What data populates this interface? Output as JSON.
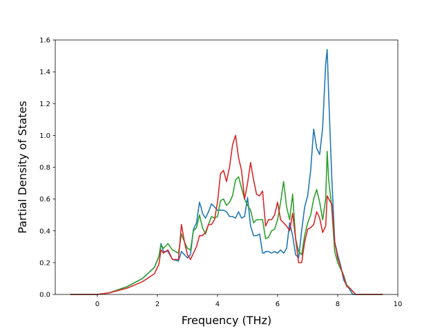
{
  "chart_data": {
    "type": "line",
    "title": "",
    "xlabel": "Frequency (THz)",
    "ylabel": "Partial Density of States",
    "xlim": [
      -1.4,
      10.0
    ],
    "ylim": [
      0.0,
      1.6
    ],
    "xticks": [
      0,
      2,
      4,
      6,
      8,
      10
    ],
    "yticks": [
      0.0,
      0.2,
      0.4,
      0.6,
      0.8,
      1.0,
      1.2,
      1.4,
      1.6
    ],
    "grid": false,
    "legend": "none",
    "series": [
      {
        "color": "#1f77b4",
        "x": [
          -0.9,
          0.0,
          0.4,
          1.0,
          1.5,
          1.9,
          2.05,
          2.12,
          2.2,
          2.35,
          2.5,
          2.7,
          2.8,
          2.9,
          3.0,
          3.1,
          3.2,
          3.3,
          3.4,
          3.45,
          3.5,
          3.6,
          3.7,
          3.8,
          3.9,
          4.0,
          4.1,
          4.2,
          4.3,
          4.4,
          4.5,
          4.6,
          4.7,
          4.8,
          4.9,
          5.0,
          5.1,
          5.2,
          5.3,
          5.4,
          5.5,
          5.55,
          5.6,
          5.7,
          5.8,
          5.9,
          6.0,
          6.1,
          6.2,
          6.3,
          6.4,
          6.5,
          6.6,
          6.7,
          6.8,
          6.9,
          7.0,
          7.1,
          7.2,
          7.3,
          7.4,
          7.5,
          7.6,
          7.65,
          7.7,
          7.8,
          7.9,
          8.0,
          8.1,
          8.2,
          8.3,
          8.4,
          8.5,
          8.6,
          8.7,
          9.5
        ],
        "y": [
          0.0,
          0.0,
          0.01,
          0.05,
          0.1,
          0.17,
          0.24,
          0.32,
          0.27,
          0.27,
          0.22,
          0.21,
          0.27,
          0.25,
          0.23,
          0.25,
          0.41,
          0.45,
          0.58,
          0.55,
          0.51,
          0.48,
          0.52,
          0.57,
          0.55,
          0.53,
          0.53,
          0.53,
          0.52,
          0.49,
          0.49,
          0.48,
          0.52,
          0.48,
          0.49,
          0.61,
          0.43,
          0.37,
          0.37,
          0.38,
          0.26,
          0.26,
          0.27,
          0.27,
          0.26,
          0.27,
          0.26,
          0.28,
          0.26,
          0.29,
          0.45,
          0.37,
          0.25,
          0.23,
          0.4,
          0.55,
          0.62,
          0.78,
          1.04,
          0.92,
          0.88,
          1.05,
          1.45,
          1.54,
          1.25,
          0.75,
          0.33,
          0.25,
          0.18,
          0.09,
          0.06,
          0.03,
          0.0,
          0.0,
          0.0,
          0.0
        ]
      },
      {
        "color": "#2ca02c",
        "x": [
          -0.9,
          0.0,
          0.4,
          1.0,
          1.5,
          1.9,
          2.05,
          2.12,
          2.2,
          2.35,
          2.5,
          2.7,
          2.8,
          2.9,
          3.0,
          3.1,
          3.2,
          3.3,
          3.4,
          3.5,
          3.6,
          3.7,
          3.8,
          3.9,
          4.0,
          4.1,
          4.2,
          4.3,
          4.4,
          4.5,
          4.6,
          4.7,
          4.8,
          4.9,
          5.0,
          5.1,
          5.2,
          5.3,
          5.4,
          5.5,
          5.6,
          5.7,
          5.8,
          5.9,
          6.0,
          6.1,
          6.2,
          6.3,
          6.4,
          6.5,
          6.6,
          6.7,
          6.8,
          6.9,
          7.0,
          7.1,
          7.2,
          7.3,
          7.4,
          7.5,
          7.6,
          7.65,
          7.7,
          7.8,
          7.9,
          8.0,
          8.1,
          8.2,
          8.3,
          8.4,
          8.5,
          8.6,
          8.7,
          9.5
        ],
        "y": [
          0.0,
          0.0,
          0.01,
          0.05,
          0.1,
          0.17,
          0.24,
          0.31,
          0.29,
          0.32,
          0.28,
          0.26,
          0.38,
          0.33,
          0.29,
          0.28,
          0.4,
          0.42,
          0.5,
          0.42,
          0.38,
          0.44,
          0.49,
          0.48,
          0.49,
          0.59,
          0.6,
          0.56,
          0.58,
          0.62,
          0.72,
          0.74,
          0.67,
          0.6,
          0.56,
          0.53,
          0.45,
          0.47,
          0.47,
          0.47,
          0.35,
          0.36,
          0.4,
          0.41,
          0.47,
          0.58,
          0.71,
          0.55,
          0.47,
          0.63,
          0.35,
          0.27,
          0.25,
          0.37,
          0.45,
          0.5,
          0.6,
          0.66,
          0.58,
          0.47,
          0.6,
          0.9,
          0.72,
          0.55,
          0.27,
          0.2,
          0.16,
          0.12,
          0.06,
          0.04,
          0.02,
          0.0,
          0.0,
          0.0
        ]
      },
      {
        "color": "#d62728",
        "x": [
          -0.9,
          0.0,
          0.4,
          1.0,
          1.5,
          1.9,
          2.05,
          2.12,
          2.2,
          2.35,
          2.5,
          2.7,
          2.8,
          2.9,
          3.0,
          3.1,
          3.2,
          3.3,
          3.4,
          3.5,
          3.6,
          3.7,
          3.8,
          3.9,
          4.0,
          4.1,
          4.2,
          4.3,
          4.4,
          4.5,
          4.6,
          4.7,
          4.8,
          4.9,
          5.0,
          5.1,
          5.2,
          5.3,
          5.4,
          5.5,
          5.6,
          5.7,
          5.8,
          5.9,
          6.0,
          6.1,
          6.2,
          6.3,
          6.4,
          6.5,
          6.6,
          6.7,
          6.8,
          6.9,
          7.0,
          7.1,
          7.2,
          7.3,
          7.4,
          7.5,
          7.6,
          7.65,
          7.7,
          7.8,
          7.9,
          8.0,
          8.1,
          8.2,
          8.3,
          8.4,
          8.5,
          8.6,
          8.7,
          9.5
        ],
        "y": [
          0.0,
          0.0,
          0.01,
          0.04,
          0.08,
          0.13,
          0.19,
          0.28,
          0.26,
          0.28,
          0.22,
          0.22,
          0.44,
          0.33,
          0.25,
          0.22,
          0.26,
          0.3,
          0.37,
          0.37,
          0.39,
          0.44,
          0.44,
          0.47,
          0.58,
          0.76,
          0.78,
          0.71,
          0.8,
          0.94,
          1.0,
          0.86,
          0.78,
          0.6,
          0.7,
          0.83,
          0.72,
          0.63,
          0.62,
          0.65,
          0.43,
          0.47,
          0.47,
          0.5,
          0.58,
          0.47,
          0.45,
          0.43,
          0.4,
          0.51,
          0.35,
          0.2,
          0.2,
          0.33,
          0.41,
          0.42,
          0.44,
          0.52,
          0.48,
          0.39,
          0.43,
          0.62,
          0.6,
          0.57,
          0.33,
          0.23,
          0.17,
          0.11,
          0.05,
          0.04,
          0.02,
          0.0,
          0.0,
          0.0
        ]
      }
    ]
  }
}
